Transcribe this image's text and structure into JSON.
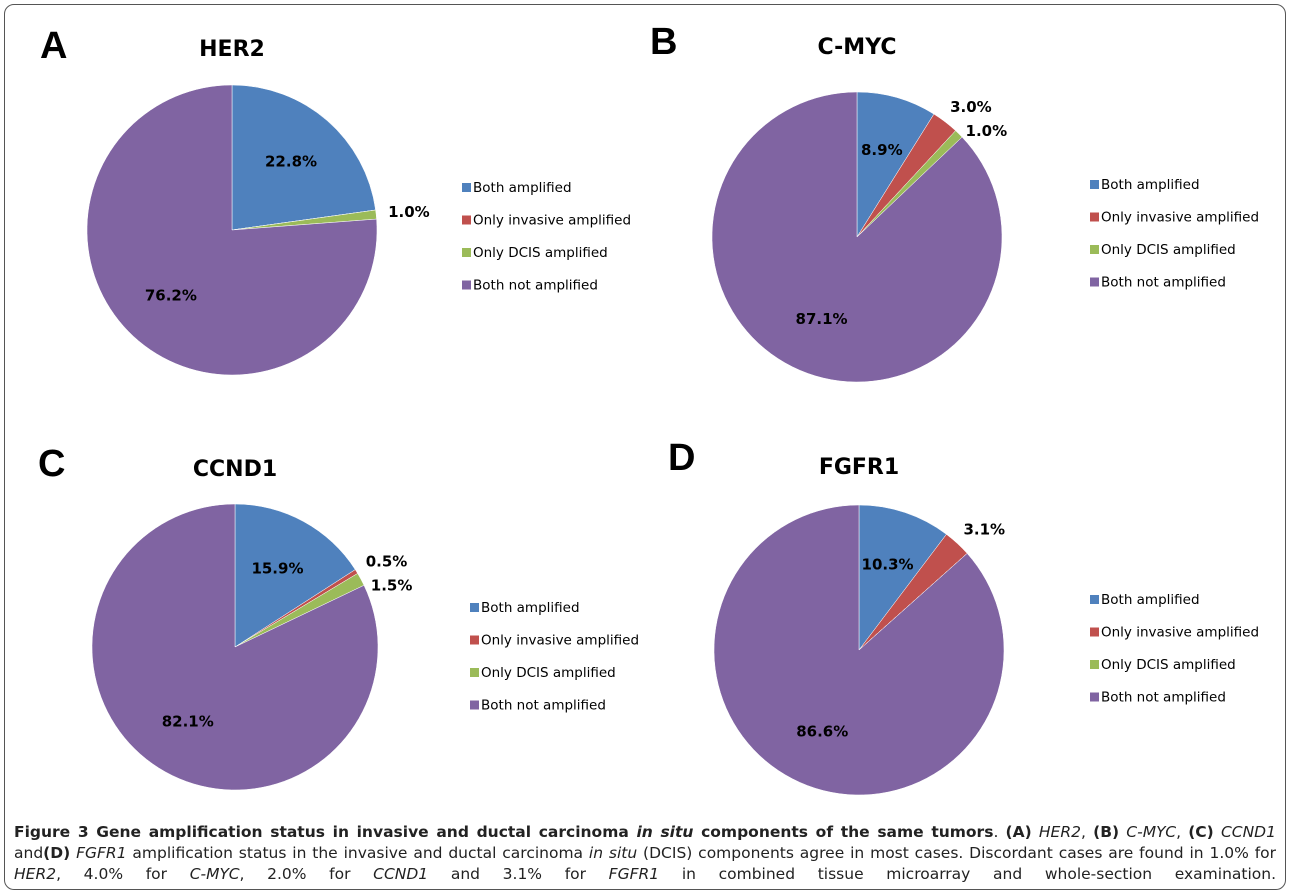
{
  "chart_data": [
    {
      "type": "pie",
      "panel": "A",
      "title": "HER2",
      "categories": [
        "Both amplified",
        "Only invasive amplified",
        "Only DCIS amplified",
        "Both not amplified"
      ],
      "values": [
        22.8,
        0,
        1.0,
        76.2
      ],
      "value_labels": [
        "22.8%",
        null,
        "1.0%",
        "76.2%"
      ],
      "colors": [
        "#4f81bd",
        "#c0504d",
        "#9bbb59",
        "#8064a2"
      ]
    },
    {
      "type": "pie",
      "panel": "B",
      "title": "C-MYC",
      "categories": [
        "Both amplified",
        "Only invasive amplified",
        "Only DCIS amplified",
        "Both not amplified"
      ],
      "values": [
        8.9,
        3.0,
        1.0,
        87.1
      ],
      "value_labels": [
        "8.9%",
        "3.0%",
        "1.0%",
        "87.1%"
      ],
      "colors": [
        "#4f81bd",
        "#c0504d",
        "#9bbb59",
        "#8064a2"
      ]
    },
    {
      "type": "pie",
      "panel": "C",
      "title": "CCND1",
      "categories": [
        "Both amplified",
        "Only invasive amplified",
        "Only DCIS amplified",
        "Both not amplified"
      ],
      "values": [
        15.9,
        0.5,
        1.5,
        82.1
      ],
      "value_labels": [
        "15.9%",
        "0.5%",
        "1.5%",
        "82.1%"
      ],
      "colors": [
        "#4f81bd",
        "#c0504d",
        "#9bbb59",
        "#8064a2"
      ]
    },
    {
      "type": "pie",
      "panel": "D",
      "title": "FGFR1",
      "categories": [
        "Both amplified",
        "Only invasive amplified",
        "Only DCIS amplified",
        "Both not amplified"
      ],
      "values": [
        10.3,
        3.1,
        0,
        86.6
      ],
      "value_labels": [
        "10.3%",
        "3.1%",
        null,
        "86.6%"
      ],
      "colors": [
        "#4f81bd",
        "#c0504d",
        "#9bbb59",
        "#8064a2"
      ]
    }
  ],
  "caption": [
    {
      "text": "Figure 3 Gene amplification status in invasive and ductal carcinoma ",
      "style": "bold"
    },
    {
      "text": "in situ",
      "style": "bold-italic"
    },
    {
      "text": " components of the same tumors",
      "style": "bold"
    },
    {
      "text": ". ",
      "style": "normal"
    },
    {
      "text": "(A)",
      "style": "bold"
    },
    {
      "text": " ",
      "style": "normal"
    },
    {
      "text": "HER2",
      "style": "italic"
    },
    {
      "text": ", ",
      "style": "normal"
    },
    {
      "text": "(B)",
      "style": "bold"
    },
    {
      "text": " ",
      "style": "normal"
    },
    {
      "text": "C-MYC",
      "style": "italic"
    },
    {
      "text": ", ",
      "style": "normal"
    },
    {
      "text": "(C)",
      "style": "bold"
    },
    {
      "text": " ",
      "style": "normal"
    },
    {
      "text": "CCND1",
      "style": "italic"
    },
    {
      "text": " and",
      "style": "normal"
    },
    {
      "text": "(D)",
      "style": "bold"
    },
    {
      "text": " ",
      "style": "normal"
    },
    {
      "text": "FGFR1",
      "style": "italic"
    },
    {
      "text": " amplification status in the invasive and ductal carcinoma ",
      "style": "normal"
    },
    {
      "text": "in situ",
      "style": "italic"
    },
    {
      "text": " (DCIS) components agree in most cases. Discordant cases are found in 1.0% for ",
      "style": "normal"
    },
    {
      "text": "HER2",
      "style": "italic"
    },
    {
      "text": ", 4.0% for ",
      "style": "normal"
    },
    {
      "text": "C-MYC",
      "style": "italic"
    },
    {
      "text": ", 2.0% for ",
      "style": "normal"
    },
    {
      "text": "CCND1",
      "style": "italic"
    },
    {
      "text": " and 3.1% for ",
      "style": "normal"
    },
    {
      "text": "FGFR1",
      "style": "italic"
    },
    {
      "text": " in combined tissue microarray and whole-section examination.",
      "style": "normal"
    }
  ]
}
